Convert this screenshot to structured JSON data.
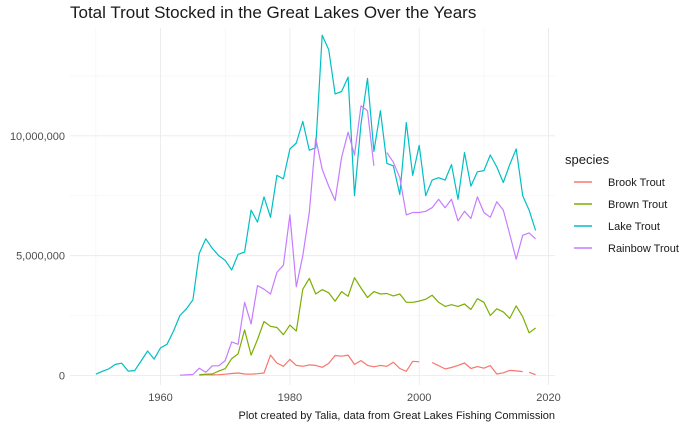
{
  "chart_data": {
    "type": "line",
    "title": "Total Trout Stocked in the Great Lakes Over the Years",
    "caption": "Plot created by Talia, data from Great Lakes Fishing Commission",
    "xlabel": "",
    "ylabel": "",
    "xlim": [
      1946,
      2021
    ],
    "ylim": [
      -400000,
      14500000
    ],
    "x_ticks": [
      1960,
      1980,
      2000,
      2020
    ],
    "y_ticks": [
      0,
      5000000,
      10000000
    ],
    "y_tick_labels": [
      "0",
      "5,000,000",
      "10,000,000"
    ],
    "grid": true,
    "legend": {
      "title": "species",
      "position": "right"
    },
    "series": [
      {
        "name": "Brook Trout",
        "color": "#F8766D",
        "points": [
          [
            1966,
            10000
          ],
          [
            1967,
            30000
          ],
          [
            1968,
            20000
          ],
          [
            1969,
            30000
          ],
          [
            1970,
            50000
          ],
          [
            1971,
            80000
          ],
          [
            1972,
            100000
          ],
          [
            1973,
            60000
          ],
          [
            1974,
            50000
          ],
          [
            1975,
            70000
          ],
          [
            1976,
            100000
          ],
          [
            1977,
            850000
          ],
          [
            1978,
            520000
          ],
          [
            1979,
            380000
          ],
          [
            1980,
            670000
          ],
          [
            1981,
            420000
          ],
          [
            1982,
            380000
          ],
          [
            1983,
            440000
          ],
          [
            1984,
            420000
          ],
          [
            1985,
            340000
          ],
          [
            1986,
            500000
          ],
          [
            1987,
            830000
          ],
          [
            1988,
            800000
          ],
          [
            1989,
            850000
          ],
          [
            1990,
            460000
          ],
          [
            1991,
            620000
          ],
          [
            1992,
            420000
          ],
          [
            1993,
            360000
          ],
          [
            1994,
            420000
          ],
          [
            1995,
            380000
          ],
          [
            1996,
            550000
          ],
          [
            1997,
            290000
          ],
          [
            1998,
            170000
          ],
          [
            1999,
            590000
          ],
          [
            2000,
            570000
          ],
          null,
          [
            2002,
            540000
          ],
          [
            2003,
            410000
          ],
          [
            2004,
            270000
          ],
          [
            2005,
            330000
          ],
          [
            2006,
            420000
          ],
          [
            2007,
            520000
          ],
          [
            2008,
            290000
          ],
          [
            2009,
            370000
          ],
          [
            2010,
            300000
          ],
          [
            2011,
            410000
          ],
          [
            2012,
            60000
          ],
          [
            2013,
            110000
          ],
          [
            2014,
            210000
          ],
          [
            2015,
            190000
          ],
          [
            2016,
            160000
          ],
          null,
          [
            2017,
            130000
          ],
          [
            2018,
            30000
          ]
        ]
      },
      {
        "name": "Brown Trout",
        "color": "#7CAE00",
        "points": [
          [
            1966,
            30000
          ],
          [
            1967,
            50000
          ],
          [
            1968,
            60000
          ],
          [
            1969,
            180000
          ],
          [
            1970,
            280000
          ],
          [
            1971,
            700000
          ],
          [
            1972,
            900000
          ],
          [
            1973,
            1900000
          ],
          [
            1974,
            850000
          ],
          [
            1975,
            1500000
          ],
          [
            1976,
            2250000
          ],
          [
            1977,
            2050000
          ],
          [
            1978,
            2000000
          ],
          [
            1979,
            1700000
          ],
          [
            1980,
            2100000
          ],
          [
            1981,
            1850000
          ],
          [
            1982,
            3600000
          ],
          [
            1983,
            4050000
          ],
          [
            1984,
            3400000
          ],
          [
            1985,
            3580000
          ],
          [
            1986,
            3450000
          ],
          [
            1987,
            3100000
          ],
          [
            1988,
            3500000
          ],
          [
            1989,
            3300000
          ],
          [
            1990,
            4080000
          ],
          [
            1991,
            3650000
          ],
          [
            1992,
            3250000
          ],
          [
            1993,
            3500000
          ],
          [
            1994,
            3400000
          ],
          [
            1995,
            3420000
          ],
          [
            1996,
            3320000
          ],
          [
            1997,
            3400000
          ],
          [
            1998,
            3050000
          ],
          [
            1999,
            3050000
          ],
          [
            2000,
            3100000
          ],
          [
            2001,
            3180000
          ],
          [
            2002,
            3350000
          ],
          [
            2003,
            3050000
          ],
          [
            2004,
            2880000
          ],
          [
            2005,
            2950000
          ],
          [
            2006,
            2880000
          ],
          [
            2007,
            2980000
          ],
          [
            2008,
            2750000
          ],
          [
            2009,
            3200000
          ],
          [
            2010,
            3050000
          ],
          [
            2011,
            2500000
          ],
          [
            2012,
            2780000
          ],
          [
            2013,
            2650000
          ],
          [
            2014,
            2380000
          ],
          [
            2015,
            2900000
          ],
          [
            2016,
            2450000
          ],
          [
            2017,
            1780000
          ],
          [
            2018,
            1980000
          ]
        ]
      },
      {
        "name": "Lake Trout",
        "color": "#00BFC4",
        "points": [
          [
            1950,
            50000
          ],
          [
            1951,
            170000
          ],
          [
            1952,
            270000
          ],
          [
            1953,
            460000
          ],
          [
            1954,
            510000
          ],
          [
            1955,
            180000
          ],
          [
            1956,
            200000
          ],
          [
            1957,
            600000
          ],
          [
            1958,
            1020000
          ],
          [
            1959,
            680000
          ],
          [
            1960,
            1150000
          ],
          [
            1961,
            1300000
          ],
          [
            1962,
            1850000
          ],
          [
            1963,
            2500000
          ],
          [
            1964,
            2780000
          ],
          [
            1965,
            3150000
          ],
          [
            1966,
            5100000
          ],
          [
            1967,
            5700000
          ],
          [
            1968,
            5300000
          ],
          [
            1969,
            5000000
          ],
          [
            1970,
            4800000
          ],
          [
            1971,
            4400000
          ],
          [
            1972,
            5050000
          ],
          [
            1973,
            5150000
          ],
          [
            1974,
            6900000
          ],
          [
            1975,
            6400000
          ],
          [
            1976,
            7450000
          ],
          [
            1977,
            6600000
          ],
          [
            1978,
            8350000
          ],
          [
            1979,
            8200000
          ],
          [
            1980,
            9450000
          ],
          [
            1981,
            9700000
          ],
          [
            1982,
            10600000
          ],
          [
            1983,
            9400000
          ],
          [
            1984,
            9500000
          ],
          [
            1985,
            14200000
          ],
          [
            1986,
            13600000
          ],
          [
            1987,
            11750000
          ],
          [
            1988,
            11850000
          ],
          [
            1989,
            12450000
          ],
          [
            1990,
            7500000
          ],
          [
            1991,
            10500000
          ],
          [
            1992,
            12400000
          ],
          [
            1993,
            9350000
          ],
          [
            1994,
            11050000
          ],
          [
            1995,
            8850000
          ],
          [
            1996,
            8750000
          ],
          [
            1997,
            7550000
          ],
          [
            1998,
            10550000
          ],
          [
            1999,
            8350000
          ],
          [
            2000,
            9600000
          ],
          [
            2001,
            7500000
          ],
          [
            2002,
            8150000
          ],
          [
            2003,
            8250000
          ],
          [
            2004,
            8150000
          ],
          [
            2005,
            8800000
          ],
          [
            2006,
            7350000
          ],
          [
            2007,
            9300000
          ],
          [
            2008,
            7900000
          ],
          [
            2009,
            8500000
          ],
          [
            2010,
            8550000
          ],
          [
            2011,
            9200000
          ],
          [
            2012,
            8700000
          ],
          [
            2013,
            8050000
          ],
          [
            2014,
            8800000
          ],
          [
            2015,
            9450000
          ],
          [
            2016,
            7500000
          ],
          [
            2017,
            6900000
          ],
          [
            2018,
            6050000
          ]
        ]
      },
      {
        "name": "Rainbow Trout",
        "color": "#C77CFF",
        "points": [
          [
            1963,
            10000
          ],
          [
            1964,
            20000
          ],
          [
            1965,
            40000
          ],
          [
            1966,
            300000
          ],
          [
            1967,
            130000
          ],
          [
            1968,
            400000
          ],
          [
            1969,
            400000
          ],
          [
            1970,
            620000
          ],
          [
            1971,
            1400000
          ],
          [
            1972,
            1300000
          ],
          [
            1973,
            3050000
          ],
          [
            1974,
            2150000
          ],
          [
            1975,
            3750000
          ],
          [
            1976,
            3600000
          ],
          [
            1977,
            3400000
          ],
          [
            1978,
            4300000
          ],
          [
            1979,
            4600000
          ],
          [
            1980,
            6700000
          ],
          [
            1981,
            3700000
          ],
          [
            1982,
            5000000
          ],
          [
            1983,
            6800000
          ],
          [
            1984,
            9900000
          ],
          [
            1985,
            8600000
          ],
          [
            1986,
            7900000
          ],
          [
            1987,
            7300000
          ],
          [
            1988,
            9100000
          ],
          [
            1989,
            10150000
          ],
          [
            1990,
            9200000
          ],
          [
            1991,
            11250000
          ],
          [
            1992,
            11050000
          ],
          [
            1993,
            8750000
          ],
          null,
          [
            1995,
            9300000
          ],
          [
            1996,
            8900000
          ],
          [
            1997,
            8250000
          ],
          [
            1998,
            6700000
          ],
          [
            1999,
            6800000
          ],
          [
            2000,
            6800000
          ],
          [
            2001,
            6850000
          ],
          [
            2002,
            7000000
          ],
          [
            2003,
            7350000
          ],
          [
            2004,
            7000000
          ],
          [
            2005,
            7350000
          ],
          [
            2006,
            6450000
          ],
          [
            2007,
            6850000
          ],
          [
            2008,
            6550000
          ],
          [
            2009,
            7450000
          ],
          [
            2010,
            6800000
          ],
          [
            2011,
            6600000
          ],
          [
            2012,
            7250000
          ],
          [
            2013,
            6900000
          ],
          [
            2014,
            5900000
          ],
          [
            2015,
            4850000
          ],
          [
            2016,
            5850000
          ],
          [
            2017,
            5950000
          ],
          [
            2018,
            5700000
          ]
        ]
      }
    ]
  }
}
